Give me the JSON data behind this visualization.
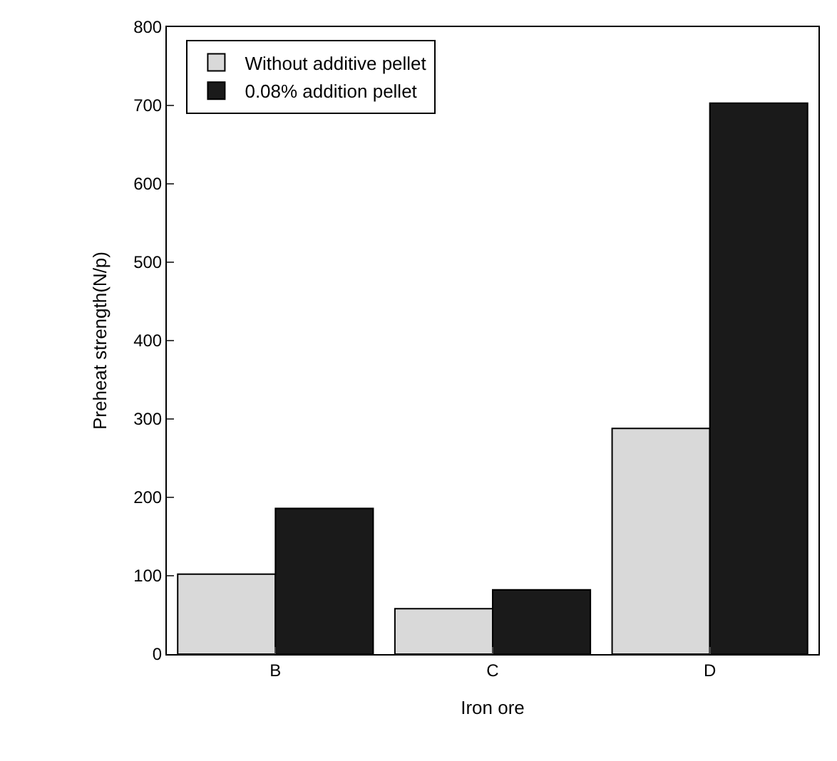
{
  "chart_data": {
    "type": "bar",
    "xlabel": "Iron ore",
    "ylabel": "Preheat strength(N/p)",
    "categories": [
      "B",
      "C",
      "D"
    ],
    "series": [
      {
        "name": "Without additive pellet",
        "color": "#d9d9d9",
        "values": [
          102,
          58,
          288
        ]
      },
      {
        "name": "0.08% addition pellet",
        "color": "#1a1a1a",
        "values": [
          186,
          82,
          703
        ]
      }
    ],
    "ylim": [
      0,
      800
    ],
    "yticks": [
      0,
      100,
      200,
      300,
      400,
      500,
      600,
      700,
      800
    ],
    "legend": "top left"
  }
}
